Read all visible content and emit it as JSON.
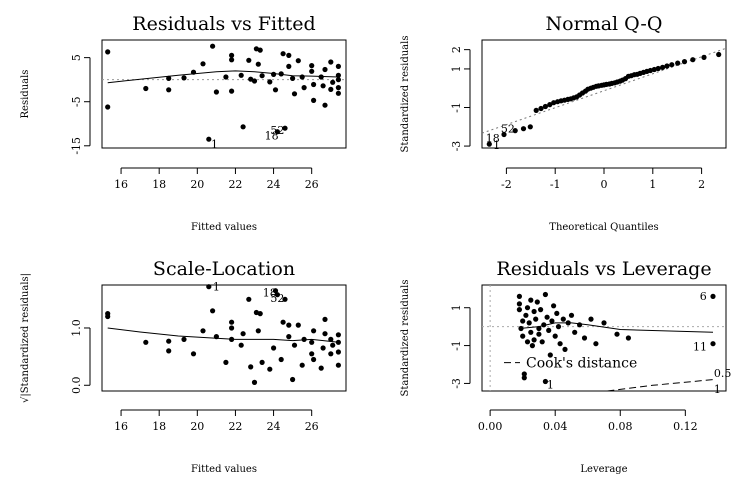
{
  "chart_data": [
    {
      "type": "scatter",
      "title": "Residuals vs Fitted",
      "xlabel": "Fitted values",
      "ylabel": "Residuals",
      "xlim": [
        15,
        27.8
      ],
      "ylim": [
        -15.5,
        9
      ],
      "xticks": [
        "16",
        "18",
        "20",
        "22",
        "24",
        "26"
      ],
      "xtick_values": [
        16,
        18,
        20,
        22,
        24,
        26
      ],
      "yticks": [
        "5",
        "-5",
        "-15"
      ],
      "ytick_values": [
        5,
        -5,
        -15
      ],
      "points": [
        [
          15.3,
          6.3
        ],
        [
          15.3,
          -6.2
        ],
        [
          17.3,
          -2.0
        ],
        [
          18.5,
          0.3
        ],
        [
          18.5,
          -2.3
        ],
        [
          19.3,
          0.4
        ],
        [
          19.8,
          1.7
        ],
        [
          20.3,
          3.6
        ],
        [
          20.8,
          7.6
        ],
        [
          20.6,
          -13.5
        ],
        [
          21.0,
          -2.8
        ],
        [
          21.5,
          0.6
        ],
        [
          21.8,
          5.5
        ],
        [
          21.8,
          4.5
        ],
        [
          21.8,
          -2.6
        ],
        [
          22.3,
          1.0
        ],
        [
          22.8,
          0.1
        ],
        [
          22.7,
          4.4
        ],
        [
          22.4,
          -10.7
        ],
        [
          23.0,
          -0.3
        ],
        [
          23.1,
          7.0
        ],
        [
          23.2,
          3.5
        ],
        [
          23.3,
          6.7
        ],
        [
          23.4,
          0.9
        ],
        [
          23.8,
          -0.5
        ],
        [
          24.0,
          1.2
        ],
        [
          24.1,
          -2.3
        ],
        [
          24.2,
          -11.8
        ],
        [
          24.4,
          1.3
        ],
        [
          24.5,
          5.9
        ],
        [
          24.6,
          -11.0
        ],
        [
          24.8,
          5.5
        ],
        [
          24.8,
          3.0
        ],
        [
          25.0,
          0.3
        ],
        [
          25.1,
          -3.2
        ],
        [
          25.3,
          4.3
        ],
        [
          25.5,
          0.6
        ],
        [
          25.6,
          -1.8
        ],
        [
          26.0,
          3.2
        ],
        [
          26.0,
          1.9
        ],
        [
          26.1,
          -1.1
        ],
        [
          26.1,
          -4.7
        ],
        [
          26.5,
          0.6
        ],
        [
          26.6,
          -1.4
        ],
        [
          26.7,
          2.3
        ],
        [
          26.7,
          -5.8
        ],
        [
          27.0,
          -2.2
        ],
        [
          27.0,
          4.0
        ],
        [
          27.1,
          -0.6
        ],
        [
          27.4,
          3.0
        ],
        [
          27.4,
          1.0
        ],
        [
          27.4,
          0.0
        ],
        [
          27.4,
          -1.8
        ],
        [
          27.4,
          -3.1
        ]
      ],
      "smooth": [
        [
          15.3,
          -0.7
        ],
        [
          17.0,
          0.1
        ],
        [
          19.0,
          1.0
        ],
        [
          21.0,
          1.8
        ],
        [
          22.0,
          2.0
        ],
        [
          23.0,
          1.8
        ],
        [
          24.0,
          1.4
        ],
        [
          25.0,
          0.9
        ],
        [
          26.0,
          0.8
        ],
        [
          27.4,
          0.6
        ]
      ],
      "zero_line": true,
      "labels": [
        {
          "text": "1",
          "x": 20.9,
          "y": -14.6
        },
        {
          "text": "18",
          "x": 23.9,
          "y": -12.7
        },
        {
          "text": "52",
          "x": 24.2,
          "y": -11.4
        }
      ]
    },
    {
      "type": "scatter",
      "title": "Normal Q-Q",
      "xlabel": "Theoretical Quantiles",
      "ylabel": "Standardized residuals",
      "xlim": [
        -2.5,
        2.5
      ],
      "ylim": [
        -3.1,
        2.5
      ],
      "xticks": [
        "-2",
        "-1",
        "0",
        "1",
        "2"
      ],
      "xtick_values": [
        -2,
        -1,
        0,
        1,
        2
      ],
      "yticks": [
        "2",
        "1",
        "-1",
        "-3"
      ],
      "ytick_values": [
        2,
        1,
        -1,
        -3
      ],
      "points": [
        [
          -2.35,
          -2.9
        ],
        [
          -2.05,
          -2.4
        ],
        [
          -1.82,
          -2.2
        ],
        [
          -1.65,
          -2.1
        ],
        [
          -1.51,
          -2.0
        ],
        [
          -1.39,
          -1.15
        ],
        [
          -1.29,
          -1.05
        ],
        [
          -1.2,
          -0.95
        ],
        [
          -1.11,
          -0.85
        ],
        [
          -1.03,
          -0.75
        ],
        [
          -0.95,
          -0.7
        ],
        [
          -0.88,
          -0.65
        ],
        [
          -0.81,
          -0.62
        ],
        [
          -0.74,
          -0.58
        ],
        [
          -0.68,
          -0.55
        ],
        [
          -0.62,
          -0.5
        ],
        [
          -0.56,
          -0.45
        ],
        [
          -0.5,
          -0.35
        ],
        [
          -0.44,
          -0.25
        ],
        [
          -0.38,
          -0.15
        ],
        [
          -0.33,
          -0.05
        ],
        [
          -0.27,
          0.0
        ],
        [
          -0.22,
          0.05
        ],
        [
          -0.16,
          0.1
        ],
        [
          -0.11,
          0.12
        ],
        [
          -0.05,
          0.15
        ],
        [
          0.0,
          0.17
        ],
        [
          0.05,
          0.2
        ],
        [
          0.11,
          0.22
        ],
        [
          0.16,
          0.25
        ],
        [
          0.22,
          0.28
        ],
        [
          0.27,
          0.32
        ],
        [
          0.33,
          0.37
        ],
        [
          0.38,
          0.42
        ],
        [
          0.44,
          0.5
        ],
        [
          0.5,
          0.62
        ],
        [
          0.56,
          0.65
        ],
        [
          0.62,
          0.7
        ],
        [
          0.68,
          0.72
        ],
        [
          0.74,
          0.77
        ],
        [
          0.81,
          0.82
        ],
        [
          0.88,
          0.87
        ],
        [
          0.95,
          0.92
        ],
        [
          1.03,
          0.97
        ],
        [
          1.11,
          1.02
        ],
        [
          1.2,
          1.08
        ],
        [
          1.29,
          1.15
        ],
        [
          1.39,
          1.22
        ],
        [
          1.51,
          1.3
        ],
        [
          1.65,
          1.38
        ],
        [
          1.82,
          1.48
        ],
        [
          2.05,
          1.6
        ],
        [
          2.35,
          1.75
        ]
      ],
      "qq_line": [
        [
          -2.5,
          -2.33
        ],
        [
          2.5,
          2.07
        ]
      ],
      "labels": [
        {
          "text": "18",
          "x": -2.28,
          "y": -2.58
        },
        {
          "text": "52",
          "x": -1.97,
          "y": -2.1
        },
        {
          "text": "1",
          "x": -2.2,
          "y": -2.95
        }
      ]
    },
    {
      "type": "scatter",
      "title": "Scale-Location",
      "xlabel": "Fitted values",
      "ylabel": "√|Standardized residuals|",
      "xlim": [
        15,
        27.8
      ],
      "ylim": [
        -0.1,
        1.75
      ],
      "xticks": [
        "16",
        "18",
        "20",
        "22",
        "24",
        "26"
      ],
      "xtick_values": [
        16,
        18,
        20,
        22,
        24,
        26
      ],
      "yticks": [
        "1.0",
        "0.0"
      ],
      "ytick_values": [
        1.0,
        0.0
      ],
      "points": [
        [
          15.3,
          1.25
        ],
        [
          15.3,
          1.2
        ],
        [
          17.3,
          0.75
        ],
        [
          18.5,
          0.77
        ],
        [
          18.5,
          0.6
        ],
        [
          19.3,
          0.8
        ],
        [
          19.8,
          0.55
        ],
        [
          20.3,
          0.95
        ],
        [
          20.8,
          1.3
        ],
        [
          20.6,
          1.72
        ],
        [
          21.0,
          0.85
        ],
        [
          21.5,
          0.4
        ],
        [
          21.8,
          1.1
        ],
        [
          21.8,
          1.0
        ],
        [
          21.8,
          0.8
        ],
        [
          22.3,
          0.7
        ],
        [
          22.8,
          0.32
        ],
        [
          22.7,
          1.5
        ],
        [
          22.4,
          0.9
        ],
        [
          23.0,
          0.05
        ],
        [
          23.1,
          1.27
        ],
        [
          23.2,
          0.95
        ],
        [
          23.3,
          1.25
        ],
        [
          23.4,
          0.4
        ],
        [
          23.8,
          0.28
        ],
        [
          24.0,
          0.65
        ],
        [
          24.1,
          1.65
        ],
        [
          24.2,
          1.58
        ],
        [
          24.4,
          0.45
        ],
        [
          24.5,
          1.1
        ],
        [
          24.6,
          1.5
        ],
        [
          24.8,
          1.05
        ],
        [
          24.8,
          0.85
        ],
        [
          25.0,
          0.1
        ],
        [
          25.1,
          0.7
        ],
        [
          25.3,
          1.05
        ],
        [
          25.5,
          0.35
        ],
        [
          25.6,
          0.8
        ],
        [
          26.0,
          0.75
        ],
        [
          26.0,
          0.55
        ],
        [
          26.1,
          0.45
        ],
        [
          26.1,
          0.95
        ],
        [
          26.5,
          0.3
        ],
        [
          26.6,
          0.65
        ],
        [
          26.7,
          1.15
        ],
        [
          26.7,
          0.9
        ],
        [
          27.0,
          0.8
        ],
        [
          27.0,
          0.55
        ],
        [
          27.1,
          0.7
        ],
        [
          27.4,
          0.88
        ],
        [
          27.4,
          0.75
        ],
        [
          27.4,
          0.58
        ],
        [
          27.4,
          0.35
        ]
      ],
      "smooth": [
        [
          15.3,
          1.0
        ],
        [
          17.0,
          0.93
        ],
        [
          19.0,
          0.86
        ],
        [
          21.0,
          0.82
        ],
        [
          22.0,
          0.8
        ],
        [
          23.0,
          0.8
        ],
        [
          24.0,
          0.8
        ],
        [
          25.0,
          0.78
        ],
        [
          26.0,
          0.8
        ],
        [
          27.4,
          0.75
        ]
      ],
      "labels": [
        {
          "text": "1",
          "x": 21.0,
          "y": 1.72
        },
        {
          "text": "18",
          "x": 23.8,
          "y": 1.62
        },
        {
          "text": "52",
          "x": 24.2,
          "y": 1.52
        }
      ]
    },
    {
      "type": "scatter",
      "title": "Residuals vs Leverage",
      "xlabel": "Leverage",
      "ylabel": "Standardized residuals",
      "xlim": [
        -0.005,
        0.145
      ],
      "ylim": [
        -3.4,
        2.2
      ],
      "xticks": [
        "0.00",
        "0.04",
        "0.08",
        "0.12"
      ],
      "xtick_values": [
        0.0,
        0.04,
        0.08,
        0.12
      ],
      "yticks": [
        "1",
        "-1",
        "-3"
      ],
      "ytick_values": [
        1,
        -1,
        -3
      ],
      "points": [
        [
          0.018,
          1.6
        ],
        [
          0.018,
          1.2
        ],
        [
          0.018,
          0.9
        ],
        [
          0.019,
          -0.1
        ],
        [
          0.02,
          0.3
        ],
        [
          0.02,
          -0.5
        ],
        [
          0.021,
          -2.5
        ],
        [
          0.021,
          -2.7
        ],
        [
          0.022,
          0.6
        ],
        [
          0.023,
          1.0
        ],
        [
          0.023,
          -0.8
        ],
        [
          0.024,
          0.2
        ],
        [
          0.025,
          1.4
        ],
        [
          0.025,
          -0.3
        ],
        [
          0.026,
          -1.0
        ],
        [
          0.027,
          0.8
        ],
        [
          0.027,
          -0.7
        ],
        [
          0.028,
          0.4
        ],
        [
          0.029,
          1.3
        ],
        [
          0.03,
          -0.1
        ],
        [
          0.03,
          -0.4
        ],
        [
          0.031,
          0.9
        ],
        [
          0.032,
          -0.8
        ],
        [
          0.033,
          0.1
        ],
        [
          0.034,
          1.7
        ],
        [
          0.034,
          -2.9
        ],
        [
          0.035,
          0.5
        ],
        [
          0.036,
          -0.2
        ],
        [
          0.037,
          -1.5
        ],
        [
          0.038,
          0.3
        ],
        [
          0.039,
          1.1
        ],
        [
          0.04,
          -0.5
        ],
        [
          0.041,
          0.7
        ],
        [
          0.042,
          0.0
        ],
        [
          0.043,
          -0.9
        ],
        [
          0.045,
          0.4
        ],
        [
          0.046,
          -1.2
        ],
        [
          0.048,
          0.2
        ],
        [
          0.05,
          0.6
        ],
        [
          0.052,
          -0.3
        ],
        [
          0.055,
          0.1
        ],
        [
          0.058,
          -0.6
        ],
        [
          0.062,
          0.4
        ],
        [
          0.065,
          -0.9
        ],
        [
          0.07,
          0.2
        ],
        [
          0.078,
          -0.4
        ],
        [
          0.085,
          -0.6
        ],
        [
          0.137,
          1.6
        ],
        [
          0.137,
          -0.9
        ]
      ],
      "smooth": [
        [
          0.018,
          -0.1
        ],
        [
          0.03,
          0.0
        ],
        [
          0.04,
          0.2
        ],
        [
          0.05,
          0.2
        ],
        [
          0.06,
          0.1
        ],
        [
          0.08,
          -0.15
        ],
        [
          0.137,
          -0.3
        ]
      ],
      "cooks_line": [
        [
          0.072,
          -3.4
        ],
        [
          0.1,
          -3.1
        ],
        [
          0.137,
          -2.8
        ]
      ],
      "legend_entry": "Cook's distance",
      "contour_labels": [
        {
          "text": "0.5",
          "x": 0.14,
          "y": -2.45
        },
        {
          "text": "1",
          "x": 0.14,
          "y": -3.3
        }
      ],
      "labels": [
        {
          "text": "6",
          "x": 0.131,
          "y": 1.62
        },
        {
          "text": "11",
          "x": 0.129,
          "y": -1.05
        },
        {
          "text": "1",
          "x": 0.037,
          "y": -3.05
        }
      ]
    }
  ]
}
